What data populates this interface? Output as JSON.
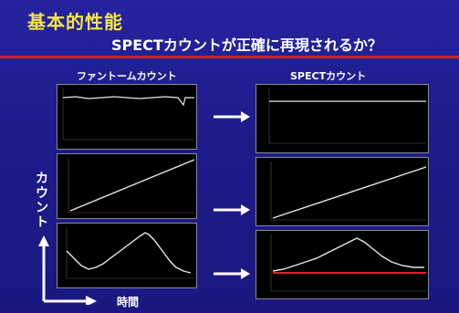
{
  "slide": {
    "title": "基本的性能",
    "subtitle": "SPECTカウントが正確に再現されるか？",
    "left_heading": "ファントームカウント",
    "right_heading": "SPECTカウント",
    "y_axis_label": "カウント",
    "x_axis_label": "時間"
  },
  "colors": {
    "background": "#1f1d8c",
    "title": "#f2e640",
    "divider": "#c8202a",
    "trace": "#e8e8e8",
    "reference_line": "#e0202a"
  }
}
